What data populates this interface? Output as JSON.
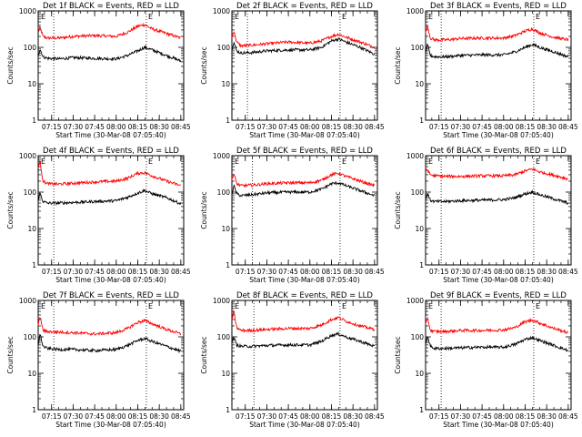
{
  "chart_data": {
    "type": "line",
    "yscale": "log",
    "ylim": [
      1,
      1000
    ],
    "yticks": [
      "1",
      "10",
      "100",
      "1000"
    ],
    "ylabel": "Counts/sec",
    "xlabel": "Start Time (30-Mar-08 07:05:40)",
    "xlim": [
      "07:05:40",
      "08:47:00"
    ],
    "xticks": [
      "07:15",
      "07:30",
      "07:45",
      "08:00",
      "08:15",
      "08:30",
      "08:45"
    ],
    "marker_label": "E",
    "colors": {
      "events": "#000000",
      "lld": "#ff0000"
    },
    "panels": [
      {
        "title": "Det 1f BLACK = Events, RED = LLD",
        "vlines": [
          "07:16:30",
          "08:21:00"
        ],
        "series": [
          {
            "key": "events",
            "x": [
              "07:05:40",
              "07:07:00",
              "07:09:00",
              "07:12:00",
              "07:20:00",
              "07:30:00",
              "07:45:00",
              "08:00:00",
              "08:08:00",
              "08:15:00",
              "08:20:00",
              "08:25:00",
              "08:35:00",
              "08:45:00"
            ],
            "y": [
              60,
              90,
              55,
              50,
              48,
              52,
              50,
              48,
              60,
              80,
              100,
              85,
              60,
              42
            ]
          },
          {
            "key": "lld",
            "x": [
              "07:05:40",
              "07:07:00",
              "07:09:00",
              "07:12:00",
              "07:20:00",
              "07:30:00",
              "07:45:00",
              "08:00:00",
              "08:08:00",
              "08:15:00",
              "08:20:00",
              "08:25:00",
              "08:35:00",
              "08:45:00"
            ],
            "y": [
              260,
              350,
              200,
              180,
              180,
              200,
              210,
              200,
              260,
              380,
              420,
              320,
              240,
              180
            ]
          }
        ]
      },
      {
        "title": "Det 2f BLACK = Events, RED = LLD",
        "vlines": [
          "07:16:30",
          "08:21:00"
        ],
        "series": [
          {
            "key": "events",
            "x": [
              "07:05:40",
              "07:07:00",
              "07:09:00",
              "07:12:00",
              "07:20:00",
              "07:30:00",
              "07:45:00",
              "08:00:00",
              "08:08:00",
              "08:15:00",
              "08:20:00",
              "08:25:00",
              "08:35:00",
              "08:45:00"
            ],
            "y": [
              90,
              140,
              80,
              70,
              72,
              80,
              85,
              85,
              100,
              150,
              170,
              140,
              100,
              65
            ]
          },
          {
            "key": "lld",
            "x": [
              "07:05:40",
              "07:07:00",
              "07:09:00",
              "07:12:00",
              "07:20:00",
              "07:30:00",
              "07:45:00",
              "08:00:00",
              "08:08:00",
              "08:15:00",
              "08:20:00",
              "08:25:00",
              "08:35:00",
              "08:45:00"
            ],
            "y": [
              180,
              290,
              140,
              110,
              115,
              125,
              140,
              130,
              150,
              200,
              230,
              190,
              140,
              100
            ]
          }
        ]
      },
      {
        "title": "Det 3f BLACK = Events, RED = LLD",
        "vlines": [
          "07:16:30",
          "08:21:00"
        ],
        "series": [
          {
            "key": "events",
            "x": [
              "07:05:40",
              "07:07:00",
              "07:09:00",
              "07:12:00",
              "07:20:00",
              "07:30:00",
              "07:45:00",
              "08:00:00",
              "08:08:00",
              "08:15:00",
              "08:20:00",
              "08:25:00",
              "08:35:00",
              "08:45:00"
            ],
            "y": [
              70,
              120,
              60,
              55,
              55,
              60,
              62,
              62,
              75,
              100,
              120,
              100,
              75,
              55
            ]
          },
          {
            "key": "lld",
            "x": [
              "07:05:40",
              "07:07:00",
              "07:09:00",
              "07:12:00",
              "07:20:00",
              "07:30:00",
              "07:45:00",
              "08:00:00",
              "08:08:00",
              "08:15:00",
              "08:20:00",
              "08:25:00",
              "08:35:00",
              "08:45:00"
            ],
            "y": [
              250,
              400,
              180,
              160,
              160,
              175,
              180,
              180,
              210,
              280,
              320,
              250,
              190,
              160
            ]
          }
        ]
      },
      {
        "title": "Det 4f BLACK = Events, RED = LLD",
        "vlines": [
          "07:16:30",
          "08:21:00"
        ],
        "series": [
          {
            "key": "events",
            "x": [
              "07:05:40",
              "07:07:00",
              "07:09:00",
              "07:12:00",
              "07:20:00",
              "07:30:00",
              "07:45:00",
              "08:00:00",
              "08:08:00",
              "08:15:00",
              "08:20:00",
              "08:25:00",
              "08:35:00",
              "08:45:00"
            ],
            "y": [
              60,
              95,
              55,
              50,
              50,
              52,
              55,
              58,
              72,
              95,
              110,
              90,
              70,
              48
            ]
          },
          {
            "key": "lld",
            "x": [
              "07:05:40",
              "07:07:00",
              "07:09:00",
              "07:12:00",
              "07:20:00",
              "07:30:00",
              "07:45:00",
              "08:00:00",
              "08:08:00",
              "08:15:00",
              "08:20:00",
              "08:25:00",
              "08:35:00",
              "08:45:00"
            ],
            "y": [
              500,
              700,
              200,
              170,
              165,
              175,
              190,
              200,
              240,
              330,
              340,
              280,
              200,
              150
            ]
          }
        ]
      },
      {
        "title": "Det 5f BLACK = Events, RED = LLD",
        "vlines": [
          "07:20:00",
          "08:21:00"
        ],
        "series": [
          {
            "key": "events",
            "x": [
              "07:05:40",
              "07:07:00",
              "07:09:00",
              "07:12:00",
              "07:20:00",
              "07:30:00",
              "07:45:00",
              "08:00:00",
              "08:08:00",
              "08:15:00",
              "08:20:00",
              "08:25:00",
              "08:35:00",
              "08:45:00"
            ],
            "y": [
              90,
              150,
              90,
              80,
              85,
              95,
              100,
              100,
              120,
              170,
              180,
              150,
              110,
              80
            ]
          },
          {
            "key": "lld",
            "x": [
              "07:05:40",
              "07:07:00",
              "07:09:00",
              "07:12:00",
              "07:20:00",
              "07:30:00",
              "07:45:00",
              "08:00:00",
              "08:08:00",
              "08:15:00",
              "08:20:00",
              "08:25:00",
              "08:35:00",
              "08:45:00"
            ],
            "y": [
              220,
              330,
              170,
              150,
              155,
              170,
              180,
              180,
              210,
              300,
              330,
              270,
              200,
              150
            ]
          }
        ]
      },
      {
        "title": "Det 6f BLACK = Events, RED = LLD",
        "vlines": [
          "07:16:30",
          "08:21:00"
        ],
        "series": [
          {
            "key": "events",
            "x": [
              "07:05:40",
              "07:07:00",
              "07:09:00",
              "07:12:00",
              "07:20:00",
              "07:30:00",
              "07:45:00",
              "08:00:00",
              "08:08:00",
              "08:15:00",
              "08:20:00",
              "08:25:00",
              "08:35:00",
              "08:45:00"
            ],
            "y": [
              70,
              90,
              60,
              55,
              55,
              58,
              60,
              62,
              70,
              90,
              100,
              85,
              65,
              50
            ]
          },
          {
            "key": "lld",
            "x": [
              "07:05:40",
              "07:07:00",
              "07:09:00",
              "07:12:00",
              "07:20:00",
              "07:30:00",
              "07:45:00",
              "08:00:00",
              "08:08:00",
              "08:15:00",
              "08:20:00",
              "08:25:00",
              "08:35:00",
              "08:45:00"
            ],
            "y": [
              450,
              400,
              300,
              280,
              270,
              270,
              280,
              280,
              300,
              380,
              430,
              360,
              290,
              230
            ]
          }
        ]
      },
      {
        "title": "Det 7f BLACK = Events, RED = LLD",
        "vlines": [
          "07:16:30",
          "08:21:00"
        ],
        "series": [
          {
            "key": "events",
            "x": [
              "07:05:40",
              "07:07:00",
              "07:09:00",
              "07:12:00",
              "07:20:00",
              "07:30:00",
              "07:45:00",
              "08:00:00",
              "08:08:00",
              "08:15:00",
              "08:20:00",
              "08:25:00",
              "08:35:00",
              "08:45:00"
            ],
            "y": [
              60,
              120,
              55,
              48,
              45,
              45,
              42,
              45,
              58,
              80,
              90,
              75,
              55,
              40
            ]
          },
          {
            "key": "lld",
            "x": [
              "07:05:40",
              "07:07:00",
              "07:09:00",
              "07:12:00",
              "07:20:00",
              "07:30:00",
              "07:45:00",
              "08:00:00",
              "08:08:00",
              "08:15:00",
              "08:20:00",
              "08:25:00",
              "08:35:00",
              "08:45:00"
            ],
            "y": [
              200,
              380,
              150,
              140,
              135,
              130,
              120,
              130,
              170,
              250,
              280,
              230,
              160,
              120
            ]
          }
        ]
      },
      {
        "title": "Det 8f BLACK = Events, RED = LLD",
        "vlines": [
          "07:21:00",
          "08:21:00"
        ],
        "series": [
          {
            "key": "events",
            "x": [
              "07:05:40",
              "07:07:00",
              "07:09:00",
              "07:12:00",
              "07:20:00",
              "07:30:00",
              "07:45:00",
              "08:00:00",
              "08:08:00",
              "08:15:00",
              "08:20:00",
              "08:25:00",
              "08:35:00",
              "08:45:00"
            ],
            "y": [
              70,
              100,
              60,
              55,
              55,
              58,
              60,
              60,
              75,
              110,
              120,
              100,
              75,
              55
            ]
          },
          {
            "key": "lld",
            "x": [
              "07:05:40",
              "07:07:00",
              "07:09:00",
              "07:12:00",
              "07:20:00",
              "07:30:00",
              "07:45:00",
              "08:00:00",
              "08:08:00",
              "08:15:00",
              "08:20:00",
              "08:25:00",
              "08:35:00",
              "08:45:00"
            ],
            "y": [
              300,
              500,
              180,
              150,
              150,
              160,
              170,
              170,
              210,
              300,
              340,
              270,
              200,
              160
            ]
          }
        ]
      },
      {
        "title": "Det 9f BLACK = Events, RED = LLD",
        "vlines": [
          "07:16:30",
          "08:21:00"
        ],
        "series": [
          {
            "key": "events",
            "x": [
              "07:05:40",
              "07:07:00",
              "07:09:00",
              "07:12:00",
              "07:20:00",
              "07:30:00",
              "07:45:00",
              "08:00:00",
              "08:08:00",
              "08:15:00",
              "08:20:00",
              "08:25:00",
              "08:35:00",
              "08:45:00"
            ],
            "y": [
              60,
              110,
              55,
              48,
              48,
              50,
              52,
              52,
              62,
              85,
              95,
              80,
              58,
              42
            ]
          },
          {
            "key": "lld",
            "x": [
              "07:05:40",
              "07:07:00",
              "07:09:00",
              "07:12:00",
              "07:20:00",
              "07:30:00",
              "07:45:00",
              "08:00:00",
              "08:08:00",
              "08:15:00",
              "08:20:00",
              "08:25:00",
              "08:35:00",
              "08:45:00"
            ],
            "y": [
              200,
              350,
              150,
              140,
              140,
              150,
              150,
              155,
              180,
              260,
              290,
              240,
              170,
              130
            ]
          }
        ]
      }
    ]
  }
}
